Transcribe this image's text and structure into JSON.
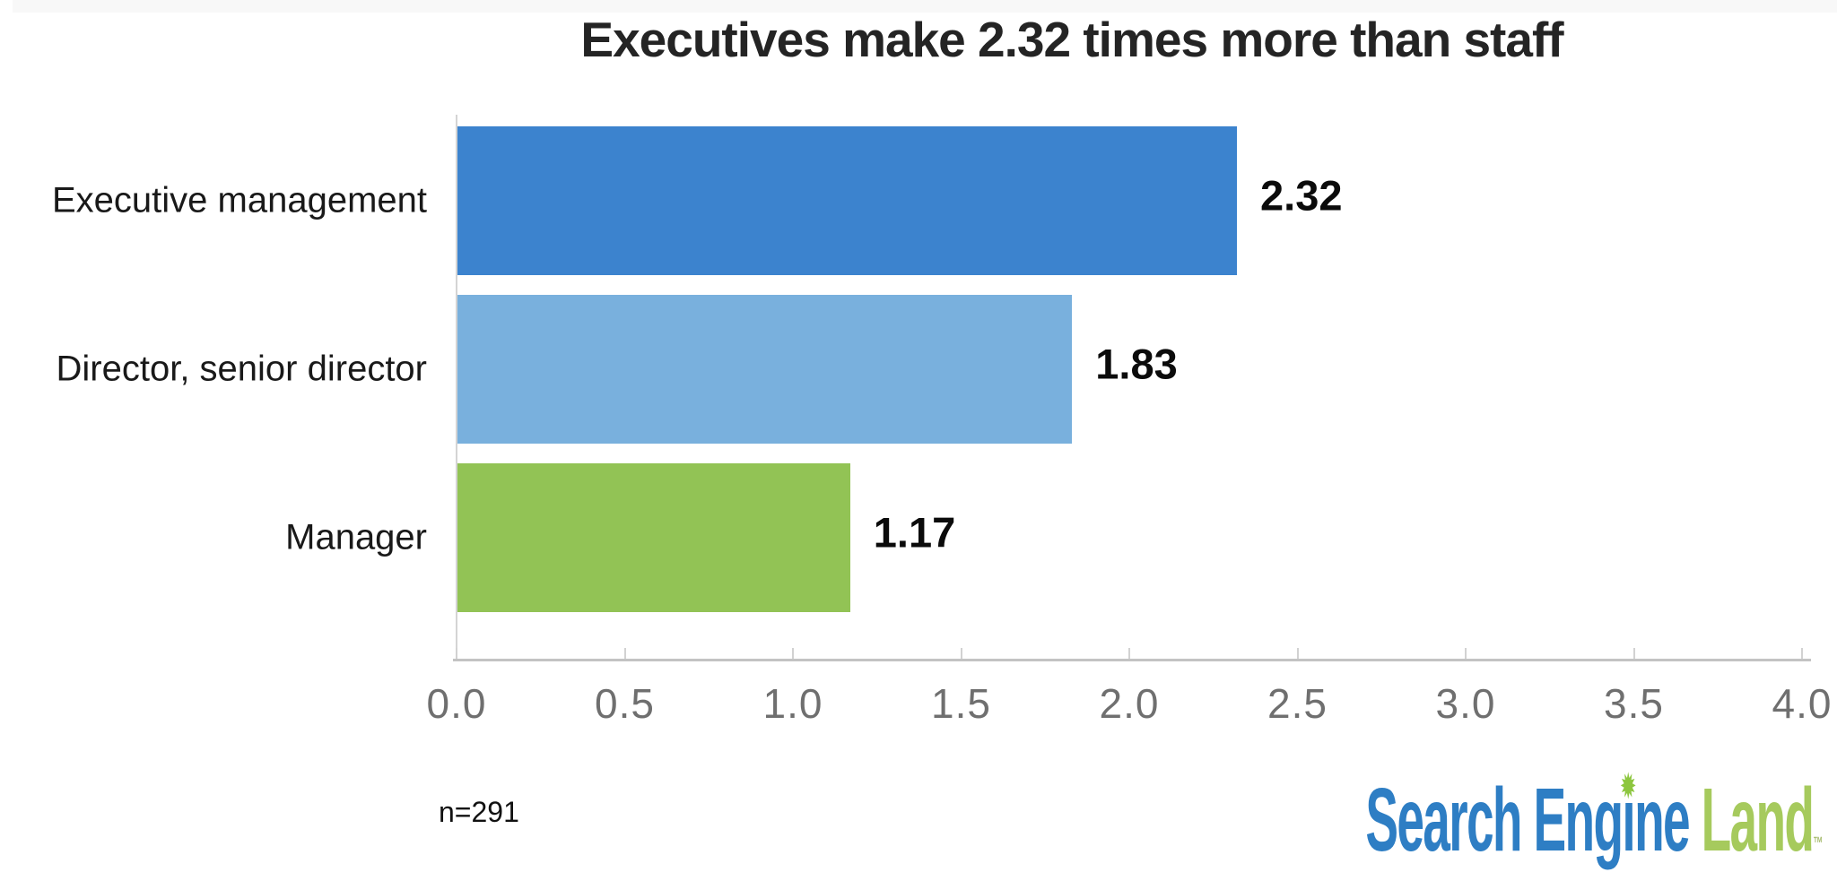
{
  "title": "Executives make 2.32 times more than staff",
  "note": "n=291",
  "chart_data": {
    "type": "bar",
    "orientation": "horizontal",
    "title": "Executives make 2.32 times more than staff",
    "categories": [
      "Executive management",
      "Director, senior director",
      "Manager"
    ],
    "values": [
      2.32,
      1.83,
      1.17
    ],
    "value_labels": [
      "2.32",
      "1.83",
      "1.17"
    ],
    "bar_colors": [
      "#3c83ce",
      "#79b0dd",
      "#92c355"
    ],
    "xlabel": "",
    "ylabel": "",
    "xlim": [
      0,
      4
    ],
    "x_ticks": [
      "0.0",
      "0.5",
      "1.0",
      "1.5",
      "2.0",
      "2.5",
      "3.0",
      "3.5",
      "4.0"
    ],
    "x_tick_values": [
      0,
      0.5,
      1,
      1.5,
      2,
      2.5,
      3,
      3.5,
      4
    ],
    "grid": false,
    "legend": false,
    "annotation": "n=291",
    "axis_color": "#c3c3c3",
    "tick_text_color": "#6f6f6f"
  },
  "logo": {
    "part1": "Search Eng",
    "dotless_i": "ı",
    "star": "✹",
    "part2": "ne",
    "land": "Land",
    "tm": "™",
    "blue": "#2e7ec4",
    "green": "#a6ca5d",
    "star_green": "#8dc63f"
  }
}
